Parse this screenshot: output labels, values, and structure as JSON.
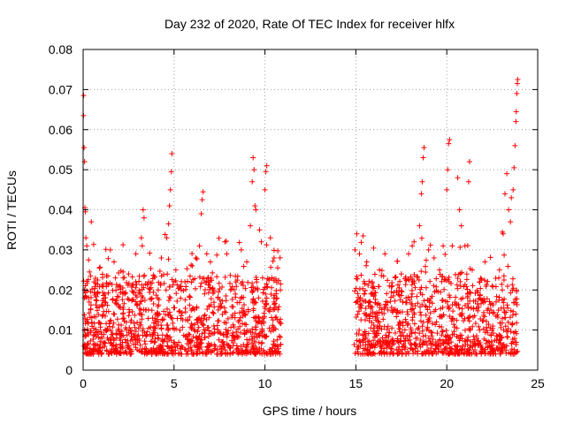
{
  "chart_data": {
    "type": "scatter",
    "title": "Day 232 of 2020, Rate Of TEC Index for receiver hlfx",
    "xlabel": "GPS time / hours",
    "ylabel": "ROTI / TECUs",
    "xlim": [
      0,
      25
    ],
    "ylim": [
      0,
      0.08
    ],
    "x_ticks": [
      0,
      5,
      10,
      15,
      20,
      25
    ],
    "x_tick_labels": [
      "0",
      "5",
      "10",
      "15",
      "20",
      "25"
    ],
    "y_ticks": [
      0,
      0.01,
      0.02,
      0.03,
      0.04,
      0.05,
      0.06,
      0.07,
      0.08
    ],
    "y_tick_labels": [
      "0",
      "0.01",
      "0.02",
      "0.03",
      "0.04",
      "0.05",
      "0.06",
      "0.07",
      "0.08"
    ],
    "grid": true,
    "marker": "+",
    "color": "#ff0000",
    "series": [
      {
        "name": "ROTI",
        "data_gap_hours": [
          10.9,
          14.9
        ],
        "points": [
          [
            0.02,
            0.0635
          ],
          [
            0.03,
            0.0685
          ],
          [
            0.05,
            0.0555
          ],
          [
            0.08,
            0.052
          ],
          [
            0.1,
            0.0405
          ],
          [
            0.12,
            0.0395
          ],
          [
            0.15,
            0.033
          ],
          [
            0.2,
            0.031
          ],
          [
            0.3,
            0.0275
          ],
          [
            0.35,
            0.0245
          ],
          [
            0.45,
            0.037
          ],
          [
            0.6,
            0.022
          ],
          [
            0.8,
            0.019
          ],
          [
            1.2,
            0.017
          ],
          [
            1.5,
            0.03
          ],
          [
            1.7,
            0.027
          ],
          [
            2.0,
            0.021
          ],
          [
            2.3,
            0.019
          ],
          [
            2.5,
            0.024
          ],
          [
            2.9,
            0.029
          ],
          [
            3.2,
            0.033
          ],
          [
            3.25,
            0.031
          ],
          [
            3.3,
            0.04
          ],
          [
            3.35,
            0.038
          ],
          [
            3.6,
            0.022
          ],
          [
            4.1,
            0.018
          ],
          [
            4.3,
            0.028
          ],
          [
            4.6,
            0.033
          ],
          [
            4.7,
            0.0365
          ],
          [
            4.75,
            0.041
          ],
          [
            4.8,
            0.045
          ],
          [
            4.85,
            0.0495
          ],
          [
            4.88,
            0.054
          ],
          [
            5.1,
            0.025
          ],
          [
            5.4,
            0.02
          ],
          [
            5.6,
            0.022
          ],
          [
            6.0,
            0.026
          ],
          [
            6.2,
            0.028
          ],
          [
            6.4,
            0.031
          ],
          [
            6.5,
            0.039
          ],
          [
            6.55,
            0.0425
          ],
          [
            6.6,
            0.0445
          ],
          [
            6.8,
            0.029
          ],
          [
            7.0,
            0.027
          ],
          [
            7.2,
            0.02
          ],
          [
            7.8,
            0.032
          ],
          [
            7.9,
            0.029
          ],
          [
            8.4,
            0.022
          ],
          [
            8.7,
            0.03
          ],
          [
            9.0,
            0.027
          ],
          [
            9.2,
            0.036
          ],
          [
            9.3,
            0.047
          ],
          [
            9.35,
            0.053
          ],
          [
            9.4,
            0.05
          ],
          [
            9.45,
            0.041
          ],
          [
            9.5,
            0.04
          ],
          [
            9.7,
            0.035
          ],
          [
            9.8,
            0.032
          ],
          [
            10.0,
            0.045
          ],
          [
            10.05,
            0.0495
          ],
          [
            10.1,
            0.051
          ],
          [
            10.3,
            0.033
          ],
          [
            10.5,
            0.028
          ],
          [
            10.7,
            0.0255
          ],
          [
            10.85,
            0.02
          ],
          [
            14.95,
            0.03
          ],
          [
            15.05,
            0.034
          ],
          [
            15.2,
            0.029
          ],
          [
            15.4,
            0.0335
          ],
          [
            15.6,
            0.027
          ],
          [
            15.9,
            0.022
          ],
          [
            16.3,
            0.025
          ],
          [
            16.6,
            0.029
          ],
          [
            17.0,
            0.021
          ],
          [
            17.5,
            0.024
          ],
          [
            17.9,
            0.029
          ],
          [
            18.1,
            0.031
          ],
          [
            18.2,
            0.032
          ],
          [
            18.5,
            0.036
          ],
          [
            18.6,
            0.044
          ],
          [
            18.65,
            0.047
          ],
          [
            18.7,
            0.053
          ],
          [
            18.75,
            0.0555
          ],
          [
            19.0,
            0.03
          ],
          [
            19.3,
            0.028
          ],
          [
            19.6,
            0.025
          ],
          [
            19.8,
            0.031
          ],
          [
            20.0,
            0.045
          ],
          [
            20.05,
            0.05
          ],
          [
            20.1,
            0.0565
          ],
          [
            20.15,
            0.0575
          ],
          [
            20.3,
            0.031
          ],
          [
            20.6,
            0.048
          ],
          [
            20.7,
            0.04
          ],
          [
            20.8,
            0.036
          ],
          [
            21.0,
            0.031
          ],
          [
            21.2,
            0.047
          ],
          [
            21.25,
            0.052
          ],
          [
            21.4,
            0.025
          ],
          [
            21.8,
            0.022
          ],
          [
            22.1,
            0.027
          ],
          [
            22.5,
            0.021
          ],
          [
            22.9,
            0.025
          ],
          [
            23.1,
            0.034
          ],
          [
            23.2,
            0.044
          ],
          [
            23.3,
            0.049
          ],
          [
            23.4,
            0.04
          ],
          [
            23.5,
            0.037
          ],
          [
            23.55,
            0.043
          ],
          [
            23.65,
            0.045
          ],
          [
            23.7,
            0.0505
          ],
          [
            23.75,
            0.056
          ],
          [
            23.8,
            0.062
          ],
          [
            23.82,
            0.0645
          ],
          [
            23.85,
            0.069
          ],
          [
            23.88,
            0.0715
          ],
          [
            23.9,
            0.0725
          ]
        ]
      }
    ]
  }
}
